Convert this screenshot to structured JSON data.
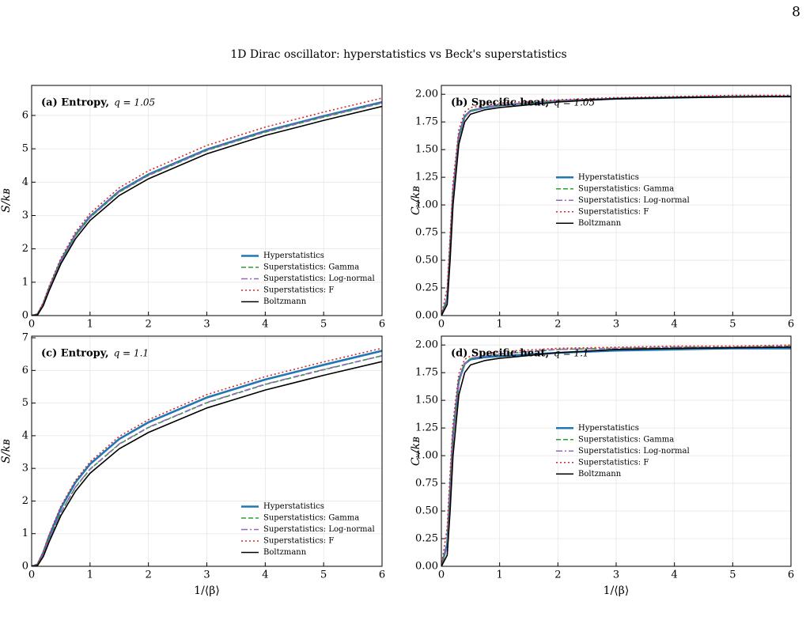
{
  "page_number": "8",
  "figure_title": "1D Dirac oscillator: hyperstatistics vs Beck's superstatistics",
  "chart_data": [
    {
      "type": "line",
      "label": "(a) Entropy,",
      "annotation": "q = 1.05",
      "ylabel": "S/kʙ",
      "x": [
        0,
        0.1,
        0.2,
        0.3,
        0.5,
        0.75,
        1,
        1.5,
        2,
        3,
        4,
        5,
        6
      ],
      "xlim": [
        0,
        6
      ],
      "xticks": [
        0,
        1,
        2,
        3,
        4,
        5,
        6
      ],
      "ylim": [
        0,
        6.9
      ],
      "yticks": [
        0,
        1,
        2,
        3,
        4,
        5,
        6
      ],
      "grid": true,
      "legend": "lower right",
      "series": [
        {
          "name": "Hyperstatistics",
          "color": "#1f77b4",
          "style": "solid",
          "values": [
            0,
            0.03,
            0.35,
            0.82,
            1.65,
            2.42,
            2.97,
            3.73,
            4.23,
            4.98,
            5.53,
            5.98,
            6.4
          ]
        },
        {
          "name": "Superstatistics: Gamma",
          "color": "#2ca02c",
          "style": "dashed",
          "values": [
            0,
            0.03,
            0.34,
            0.8,
            1.62,
            2.39,
            2.94,
            3.7,
            4.2,
            4.95,
            5.5,
            5.95,
            6.37
          ]
        },
        {
          "name": "Superstatistics: Log-normal",
          "color": "#9467bd",
          "style": "dashdot",
          "values": [
            0,
            0.03,
            0.34,
            0.8,
            1.63,
            2.4,
            2.95,
            3.71,
            4.21,
            4.96,
            5.51,
            5.96,
            6.38
          ]
        },
        {
          "name": "Superstatistics: F",
          "color": "#d62728",
          "style": "dotted",
          "values": [
            0,
            0.05,
            0.4,
            0.88,
            1.72,
            2.5,
            3.06,
            3.83,
            4.34,
            5.1,
            5.65,
            6.1,
            6.52
          ]
        },
        {
          "name": "Boltzmann",
          "color": "#000000",
          "style": "solid",
          "values": [
            0,
            0.02,
            0.3,
            0.75,
            1.55,
            2.3,
            2.85,
            3.6,
            4.1,
            4.85,
            5.4,
            5.85,
            6.27
          ]
        }
      ]
    },
    {
      "type": "line",
      "label": "(b) Specific heat,",
      "annotation": "q = 1.05",
      "ylabel": "Cᵥ/kʙ",
      "x": [
        0,
        0.1,
        0.15,
        0.2,
        0.3,
        0.4,
        0.5,
        0.75,
        1,
        2,
        3,
        4,
        5,
        6
      ],
      "xlim": [
        0,
        6
      ],
      "xticks": [
        0,
        1,
        2,
        3,
        4,
        5,
        6
      ],
      "ylim": [
        0,
        2.08
      ],
      "yticks": [
        {
          "value": 0,
          "label": "0.00"
        },
        0.25,
        {
          "value": 0.5,
          "label": "0.50"
        },
        0.75,
        {
          "value": 1,
          "label": "1.00"
        },
        1.25,
        {
          "value": 1.5,
          "label": "1.50"
        },
        1.75,
        {
          "value": 2,
          "label": "2.00"
        }
      ],
      "grid": true,
      "legend": "center",
      "series": [
        {
          "name": "Hyperstatistics",
          "color": "#1f77b4",
          "style": "solid",
          "values": [
            0,
            0.15,
            0.6,
            1.1,
            1.62,
            1.8,
            1.85,
            1.88,
            1.9,
            1.94,
            1.96,
            1.97,
            1.98,
            1.98
          ]
        },
        {
          "name": "Superstatistics: Gamma",
          "color": "#2ca02c",
          "style": "dashed",
          "values": [
            0,
            0.14,
            0.58,
            1.08,
            1.6,
            1.79,
            1.85,
            1.88,
            1.9,
            1.94,
            1.96,
            1.97,
            1.98,
            1.98
          ]
        },
        {
          "name": "Superstatistics: Log-normal",
          "color": "#9467bd",
          "style": "dashdot",
          "values": [
            0,
            0.14,
            0.59,
            1.09,
            1.61,
            1.79,
            1.85,
            1.88,
            1.9,
            1.94,
            1.96,
            1.97,
            1.98,
            1.98
          ]
        },
        {
          "name": "Superstatistics: F",
          "color": "#d62728",
          "style": "dotted",
          "values": [
            0,
            0.25,
            0.72,
            1.2,
            1.68,
            1.84,
            1.88,
            1.9,
            1.92,
            1.95,
            1.97,
            1.98,
            1.99,
            1.99
          ]
        },
        {
          "name": "Boltzmann",
          "color": "#000000",
          "style": "solid",
          "values": [
            0,
            0.1,
            0.5,
            1.0,
            1.55,
            1.75,
            1.82,
            1.86,
            1.88,
            1.93,
            1.96,
            1.97,
            1.975,
            1.98
          ]
        }
      ]
    },
    {
      "type": "line",
      "label": "(c) Entropy,",
      "annotation": "q = 1.1",
      "ylabel": "S/kʙ",
      "xlabel": "1/⟨β⟩",
      "x": [
        0,
        0.1,
        0.2,
        0.3,
        0.5,
        0.75,
        1,
        1.5,
        2,
        3,
        4,
        5,
        6
      ],
      "xlim": [
        0,
        6
      ],
      "xticks": [
        0,
        1,
        2,
        3,
        4,
        5,
        6
      ],
      "ylim": [
        0,
        7.05
      ],
      "yticks": [
        0,
        1,
        2,
        3,
        4,
        5,
        6,
        7
      ],
      "grid": true,
      "legend": "lower right",
      "series": [
        {
          "name": "Hyperstatistics",
          "color": "#1f77b4",
          "style": "solid",
          "values": [
            0,
            0.05,
            0.42,
            0.92,
            1.78,
            2.57,
            3.13,
            3.9,
            4.41,
            5.17,
            5.72,
            6.17,
            6.6
          ]
        },
        {
          "name": "Superstatistics: Gamma",
          "color": "#2ca02c",
          "style": "dashed",
          "values": [
            0,
            0.04,
            0.36,
            0.82,
            1.64,
            2.42,
            2.97,
            3.74,
            4.25,
            5.01,
            5.57,
            6.02,
            6.45
          ]
        },
        {
          "name": "Superstatistics: Log-normal",
          "color": "#9467bd",
          "style": "dashdot",
          "values": [
            0,
            0.04,
            0.36,
            0.83,
            1.65,
            2.43,
            2.98,
            3.75,
            4.26,
            5.02,
            5.58,
            6.03,
            6.45
          ]
        },
        {
          "name": "Superstatistics: F",
          "color": "#d62728",
          "style": "dotted",
          "values": [
            0,
            0.07,
            0.46,
            0.97,
            1.84,
            2.63,
            3.2,
            3.98,
            4.49,
            5.26,
            5.81,
            6.26,
            6.68
          ]
        },
        {
          "name": "Boltzmann",
          "color": "#000000",
          "style": "solid",
          "values": [
            0,
            0.02,
            0.3,
            0.75,
            1.55,
            2.3,
            2.85,
            3.6,
            4.1,
            4.85,
            5.4,
            5.85,
            6.27
          ]
        }
      ]
    },
    {
      "type": "line",
      "label": "(d) Specific heat,",
      "annotation": "q = 1.1",
      "ylabel": "Cᵥ/kʙ",
      "xlabel": "1/⟨β⟩",
      "x": [
        0,
        0.1,
        0.15,
        0.2,
        0.3,
        0.4,
        0.5,
        0.75,
        1,
        2,
        3,
        4,
        5,
        6
      ],
      "xlim": [
        0,
        6
      ],
      "xticks": [
        0,
        1,
        2,
        3,
        4,
        5,
        6
      ],
      "ylim": [
        0,
        2.08
      ],
      "yticks": [
        {
          "value": 0,
          "label": "0.00"
        },
        0.25,
        {
          "value": 0.5,
          "label": "0.50"
        },
        0.75,
        {
          "value": 1,
          "label": "1.00"
        },
        1.25,
        {
          "value": 1.5,
          "label": "1.50"
        },
        1.75,
        {
          "value": 2,
          "label": "2.00"
        }
      ],
      "grid": true,
      "legend": "center",
      "series": [
        {
          "name": "Hyperstatistics",
          "color": "#1f77b4",
          "style": "solid",
          "values": [
            0,
            0.2,
            0.68,
            1.18,
            1.68,
            1.83,
            1.87,
            1.89,
            1.9,
            1.93,
            1.95,
            1.96,
            1.97,
            1.97
          ]
        },
        {
          "name": "Superstatistics: Gamma",
          "color": "#2ca02c",
          "style": "dashed",
          "values": [
            0,
            0.18,
            0.65,
            1.15,
            1.66,
            1.83,
            1.88,
            1.9,
            1.92,
            1.96,
            1.97,
            1.98,
            1.98,
            1.99
          ]
        },
        {
          "name": "Superstatistics: Log-normal",
          "color": "#9467bd",
          "style": "dashdot",
          "values": [
            0,
            0.18,
            0.66,
            1.16,
            1.66,
            1.83,
            1.88,
            1.9,
            1.92,
            1.96,
            1.97,
            1.98,
            1.98,
            1.99
          ]
        },
        {
          "name": "Superstatistics: F",
          "color": "#d62728",
          "style": "dotted",
          "values": [
            0,
            0.35,
            0.85,
            1.3,
            1.74,
            1.87,
            1.9,
            1.92,
            1.94,
            1.97,
            1.98,
            1.99,
            1.99,
            2.0
          ]
        },
        {
          "name": "Boltzmann",
          "color": "#000000",
          "style": "solid",
          "values": [
            0,
            0.1,
            0.5,
            1.0,
            1.55,
            1.75,
            1.82,
            1.86,
            1.88,
            1.93,
            1.96,
            1.97,
            1.975,
            1.98
          ]
        }
      ]
    }
  ]
}
